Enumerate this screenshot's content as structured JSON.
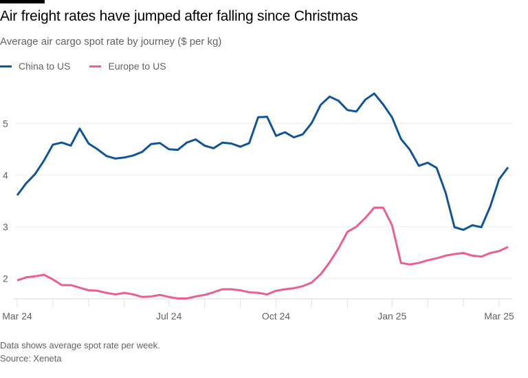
{
  "title": "Air freight rates have jumped after falling since Christmas",
  "subtitle": "Average air cargo spot rate by journey ($ per kg)",
  "footer": {
    "note": "Data shows average spot rate per week.",
    "source": "Source: Xeneta"
  },
  "chart_data": {
    "type": "line",
    "title": "Air freight rates have jumped after falling since Christmas",
    "subtitle": "Average air cargo spot rate by journey ($ per kg)",
    "ylim": [
      1.6,
      5.6
    ],
    "yticks": [
      2,
      3,
      4,
      5
    ],
    "grid": true,
    "legend": "top-left",
    "xticks": [
      {
        "week": 0,
        "label": "Mar 24"
      },
      {
        "week": 4,
        "label": ""
      },
      {
        "week": 8,
        "label": ""
      },
      {
        "week": 12,
        "label": ""
      },
      {
        "week": 17,
        "label": "Jul 24"
      },
      {
        "week": 21,
        "label": ""
      },
      {
        "week": 25,
        "label": ""
      },
      {
        "week": 29,
        "label": "Oct 24"
      },
      {
        "week": 33,
        "label": ""
      },
      {
        "week": 37,
        "label": ""
      },
      {
        "week": 42,
        "label": "Jan 25"
      },
      {
        "week": 46,
        "label": ""
      },
      {
        "week": 50,
        "label": ""
      },
      {
        "week": 54,
        "label": "Mar 25"
      }
    ],
    "series": [
      {
        "name": "China to US",
        "color": "#0f5499",
        "values": [
          3.61,
          3.84,
          4.02,
          4.28,
          4.59,
          4.63,
          4.57,
          4.9,
          4.61,
          4.5,
          4.37,
          4.32,
          4.34,
          4.38,
          4.45,
          4.6,
          4.62,
          4.5,
          4.49,
          4.63,
          4.69,
          4.57,
          4.52,
          4.63,
          4.61,
          4.55,
          4.62,
          5.12,
          5.13,
          4.76,
          4.83,
          4.73,
          4.79,
          5.01,
          5.36,
          5.52,
          5.44,
          5.26,
          5.23,
          5.46,
          5.58,
          5.37,
          5.12,
          4.7,
          4.49,
          4.18,
          4.24,
          4.14,
          3.66,
          2.99,
          2.94,
          3.03,
          2.99,
          3.39,
          3.92,
          4.15
        ]
      },
      {
        "name": "Europe to US",
        "color": "#eb5e8d",
        "values": [
          1.96,
          2.02,
          2.04,
          2.07,
          1.98,
          1.87,
          1.87,
          1.82,
          1.77,
          1.76,
          1.72,
          1.69,
          1.72,
          1.69,
          1.64,
          1.65,
          1.68,
          1.64,
          1.61,
          1.61,
          1.65,
          1.68,
          1.73,
          1.79,
          1.79,
          1.77,
          1.73,
          1.72,
          1.69,
          1.76,
          1.79,
          1.81,
          1.85,
          1.92,
          2.08,
          2.31,
          2.58,
          2.9,
          3.0,
          3.17,
          3.37,
          3.37,
          3.03,
          2.3,
          2.27,
          2.3,
          2.35,
          2.39,
          2.44,
          2.47,
          2.49,
          2.44,
          2.42,
          2.49,
          2.53,
          2.61
        ]
      }
    ]
  }
}
